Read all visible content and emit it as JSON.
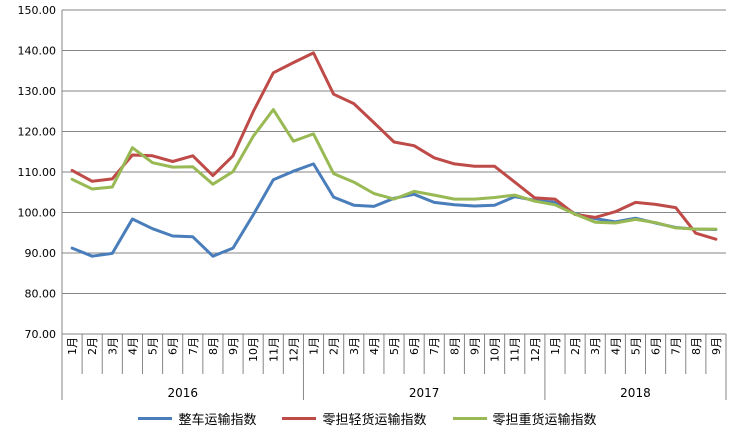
{
  "chart_data": {
    "type": "line",
    "title": "",
    "xlabel": "",
    "ylabel": "",
    "ylim": [
      70,
      150
    ],
    "yticks": [
      "70.00",
      "80.00",
      "90.00",
      "100.00",
      "110.00",
      "120.00",
      "130.00",
      "140.00",
      "150.00"
    ],
    "yticks_values": [
      70,
      80,
      90,
      100,
      110,
      120,
      130,
      140,
      150
    ],
    "grid": true,
    "legend_position": "bottom",
    "years": [
      {
        "label": "2016",
        "months": [
          "1月",
          "2月",
          "3月",
          "4月",
          "5月",
          "6月",
          "7月",
          "8月",
          "9月",
          "10月",
          "11月",
          "12月"
        ]
      },
      {
        "label": "2017",
        "months": [
          "1月",
          "2月",
          "3月",
          "4月",
          "5月",
          "6月",
          "7月",
          "8月",
          "9月",
          "10月",
          "11月",
          "12月"
        ]
      },
      {
        "label": "2018",
        "months": [
          "1月",
          "2月",
          "3月",
          "4月",
          "5月",
          "6月",
          "7月",
          "8月",
          "9月"
        ]
      }
    ],
    "series": [
      {
        "name": "整车运输指数",
        "color": "#4a7ebb",
        "values": [
          91.2,
          89.2,
          89.9,
          98.4,
          96.0,
          94.2,
          94.0,
          89.2,
          91.2,
          99.4,
          108.1,
          110.2,
          112.0,
          103.8,
          101.8,
          101.5,
          103.5,
          104.5,
          102.5,
          101.9,
          101.6,
          101.8,
          103.9,
          103.0,
          102.5,
          99.7,
          98.5,
          97.7,
          98.6,
          97.4,
          96.3,
          95.9,
          95.8
        ]
      },
      {
        "name": "零担轻货运输指数",
        "color": "#be4b48",
        "values": [
          110.4,
          107.7,
          108.3,
          114.2,
          114.0,
          112.6,
          114.0,
          109.1,
          114.0,
          124.9,
          134.5,
          137.0,
          139.4,
          129.2,
          126.9,
          122.2,
          117.4,
          116.5,
          113.5,
          112.0,
          111.4,
          111.4,
          107.5,
          103.6,
          103.3,
          99.5,
          98.8,
          100.2,
          102.5,
          102.0,
          101.2,
          94.9,
          93.4
        ]
      },
      {
        "name": "零担重货运输指数",
        "color": "#98b954",
        "values": [
          108.2,
          105.8,
          106.3,
          116.0,
          112.3,
          111.2,
          111.3,
          107.0,
          110.1,
          118.8,
          125.4,
          117.6,
          119.4,
          109.6,
          107.5,
          104.7,
          103.3,
          105.2,
          104.3,
          103.3,
          103.3,
          103.7,
          104.3,
          102.8,
          101.9,
          99.6,
          97.6,
          97.4,
          98.3,
          97.5,
          96.2,
          95.9,
          95.9
        ]
      }
    ]
  }
}
